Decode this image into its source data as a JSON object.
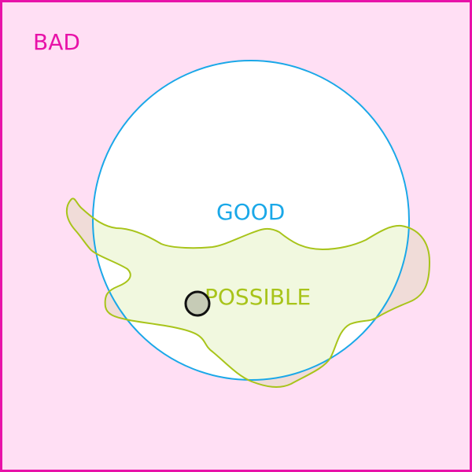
{
  "labels": {
    "bad": "BAD",
    "good": "GOOD",
    "possible": "POSSIBLE"
  },
  "colors": {
    "bad_stroke": "#e812a8",
    "bad_fill": "#ffdff4",
    "good_stroke": "#1aa8e8",
    "good_fill": "#ffffff",
    "possible_stroke": "#a8c41a",
    "possible_fill_inside": "#f1f8df",
    "possible_fill_outside": "#f0dcd8",
    "marker_stroke": "#111111",
    "marker_fill": "#c6cbb6"
  }
}
